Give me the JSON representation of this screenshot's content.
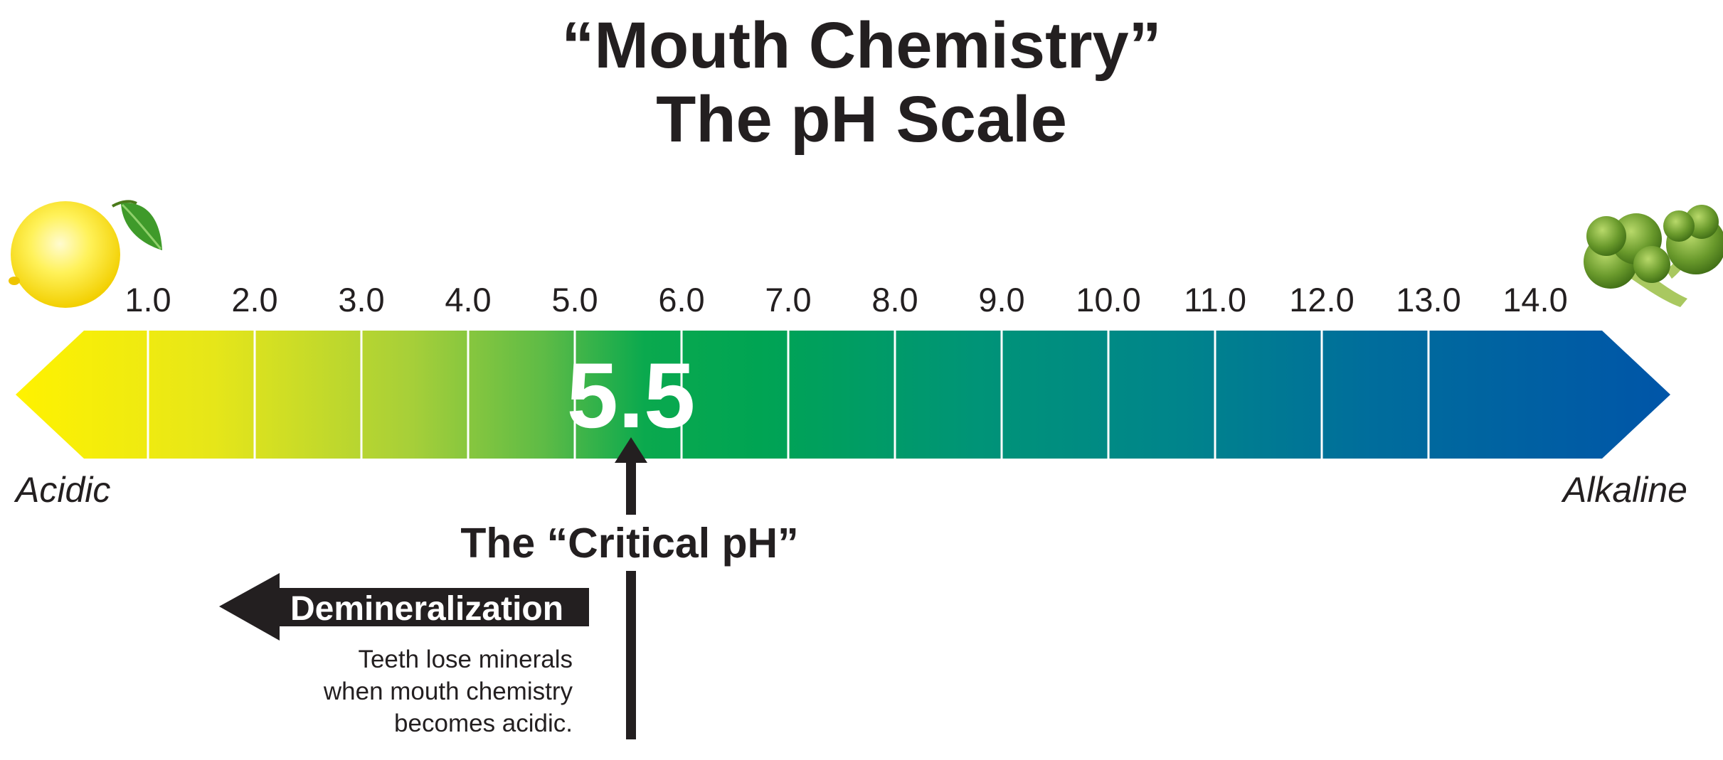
{
  "title": {
    "line1": "“Mouth Chemistry”",
    "line2": "The pH Scale"
  },
  "scale": {
    "ticks": [
      "1.0",
      "2.0",
      "3.0",
      "4.0",
      "5.0",
      "6.0",
      "7.0",
      "8.0",
      "9.0",
      "10.0",
      "11.0",
      "12.0",
      "13.0",
      "14.0"
    ],
    "left_label": "Acidic",
    "right_label": "Alkaline",
    "critical_value": "5.5",
    "colors": [
      "#fff200",
      "#d7df23",
      "#a3cd39",
      "#6cbe45",
      "#39b54a",
      "#00a651",
      "#00a160",
      "#00967a",
      "#008b86",
      "#00808f",
      "#00739a",
      "#0066a4",
      "#005baa",
      "#0055a9"
    ]
  },
  "critical": {
    "label": "The “Critical pH”"
  },
  "demineralization": {
    "label": "Demineralization",
    "description": [
      "Teeth lose minerals",
      "when mouth chemistry",
      "becomes acidic."
    ]
  },
  "icons": {
    "left": "lemon-icon",
    "right": "broccoli-icon"
  }
}
